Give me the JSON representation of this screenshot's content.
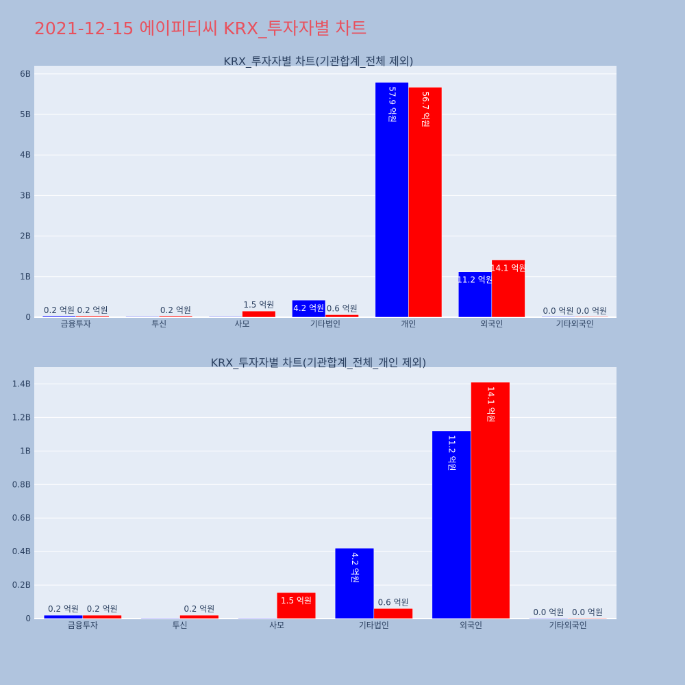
{
  "page": {
    "title": "2021-12-15 에이피티씨 KRX_투자자별 차트",
    "background": "#b0c4de",
    "title_color": "#e8515d"
  },
  "chart_data": [
    {
      "type": "bar",
      "title": "KRX_투자자별 차트(기관합계_전체 제외)",
      "categories": [
        "금융투자",
        "투신",
        "사모",
        "기타법인",
        "개인",
        "외국인",
        "기타외국인"
      ],
      "series": [
        {
          "color": "#0000ff",
          "values": [
            0.02,
            0,
            0,
            0.42,
            5.79,
            1.12,
            0.0
          ],
          "labels": [
            "0.2 억원",
            "",
            "",
            "4.2 억원",
            "57.9 억원",
            "11.2 억원",
            "0.0 억원"
          ]
        },
        {
          "color": "#ff0000",
          "values": [
            0.02,
            0.02,
            0.15,
            0.06,
            5.67,
            1.41,
            0.0
          ],
          "labels": [
            "0.2 억원",
            "0.2 억원",
            "1.5 억원",
            "0.6 억원",
            "56.7 억원",
            "14.1 억원",
            "0.0 억원"
          ]
        }
      ],
      "ylim": [
        0,
        6.2
      ],
      "yticks": [
        0,
        1,
        2,
        3,
        4,
        5,
        6
      ],
      "ytick_labels": [
        "0",
        "1B",
        "2B",
        "3B",
        "4B",
        "5B",
        "6B"
      ],
      "grid": true
    },
    {
      "type": "bar",
      "title": "KRX_투자자별 차트(기관합계_전체_개인 제외)",
      "categories": [
        "금융투자",
        "투신",
        "사모",
        "기타법인",
        "외국인",
        "기타외국인"
      ],
      "series": [
        {
          "color": "#0000ff",
          "values": [
            0.02,
            0,
            0,
            0.42,
            1.12,
            0.0
          ],
          "labels": [
            "0.2 억원",
            "",
            "",
            "4.2 억원",
            "11.2 억원",
            "0.0 억원"
          ]
        },
        {
          "color": "#ff0000",
          "values": [
            0.02,
            0.02,
            0.155,
            0.06,
            1.41,
            0.0
          ],
          "labels": [
            "0.2 억원",
            "0.2 억원",
            "1.5 억원",
            "0.6 억원",
            "14.1 억원",
            "0.0 억원"
          ]
        }
      ],
      "ylim": [
        0,
        1.5
      ],
      "yticks": [
        0,
        0.2,
        0.4,
        0.6,
        0.8,
        1.0,
        1.2,
        1.4
      ],
      "ytick_labels": [
        "0",
        "0.2B",
        "0.4B",
        "0.6B",
        "0.8B",
        "1B",
        "1.2B",
        "1.4B"
      ],
      "grid": true
    }
  ]
}
